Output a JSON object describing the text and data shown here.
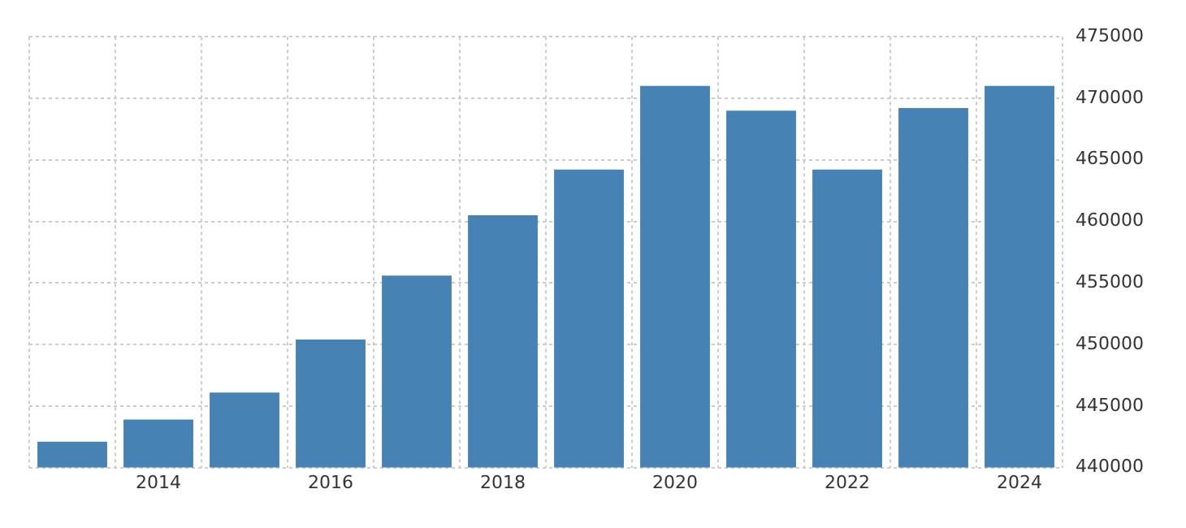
{
  "chart_data": {
    "type": "bar",
    "categories": [
      null,
      "2014",
      null,
      "2016",
      null,
      "2018",
      null,
      "2020",
      null,
      "2022",
      null,
      "2024"
    ],
    "values": [
      442100,
      443900,
      446100,
      450400,
      455600,
      460500,
      464200,
      471000,
      469000,
      464200,
      469200,
      471000
    ],
    "color": "#4682b4",
    "ylim": [
      440000,
      475000
    ],
    "yticks": [
      440000,
      445000,
      450000,
      455000,
      460000,
      465000,
      470000,
      475000
    ],
    "grid": true,
    "legend": false
  }
}
